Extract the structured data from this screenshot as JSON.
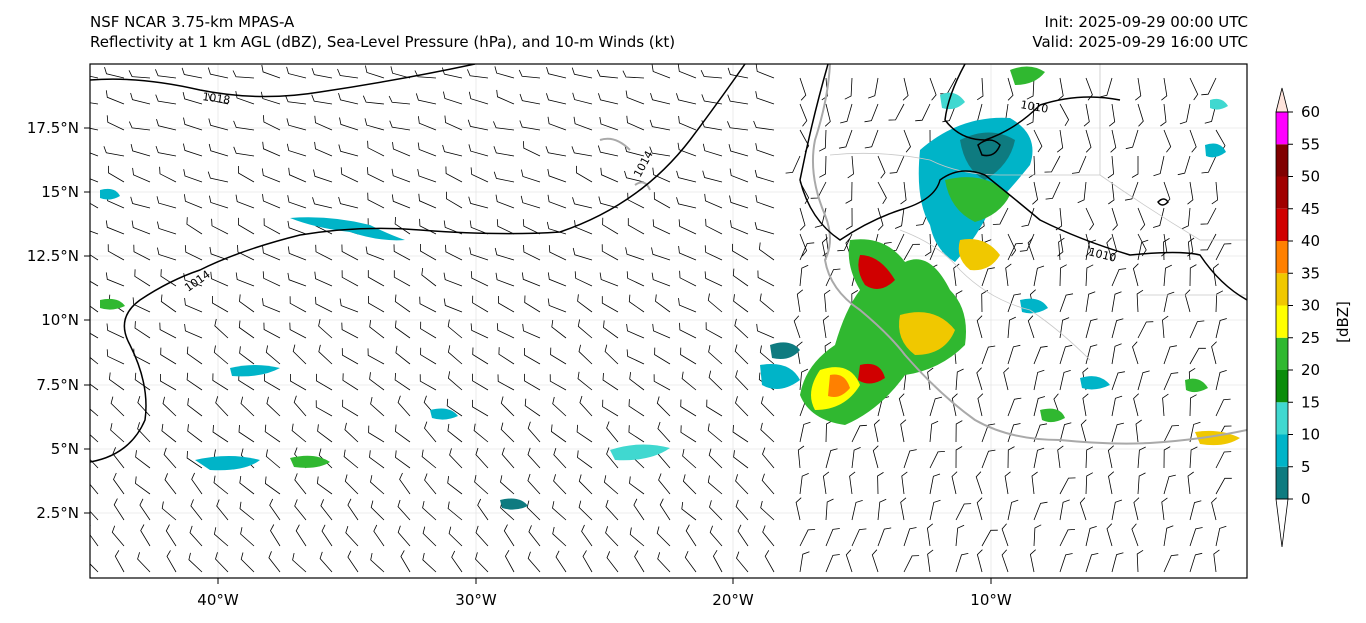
{
  "header": {
    "title_line1": "NSF NCAR 3.75-km MPAS-A",
    "title_line2": "Reflectivity at 1 km AGL (dBZ), Sea-Level Pressure (hPa), and 10-m Winds (kt)",
    "init": "Init: 2025-09-29 00:00 UTC",
    "valid": "Valid: 2025-09-29 16:00 UTC"
  },
  "axes": {
    "lat_ticks": [
      "17.5°N",
      "15°N",
      "12.5°N",
      "10°N",
      "7.5°N",
      "5°N",
      "2.5°N"
    ],
    "lon_ticks": [
      "40°W",
      "30°W",
      "20°W",
      "10°W"
    ]
  },
  "isobars": [
    "1018",
    "1014",
    "1014",
    "1010",
    "1010"
  ],
  "colorbar": {
    "label": "[dBZ]",
    "ticks": [
      "0",
      "5",
      "10",
      "15",
      "20",
      "25",
      "30",
      "35",
      "40",
      "45",
      "50",
      "55",
      "60"
    ],
    "colors": [
      "#ffffff",
      "#0e7b80",
      "#00b4c8",
      "#40d8d0",
      "#0a8c0a",
      "#30b830",
      "#ffff00",
      "#f0c800",
      "#ff8000",
      "#d00000",
      "#a00000",
      "#800000",
      "#ff00ff",
      "#ffe4dc"
    ]
  },
  "colors": {
    "coast": "#a9a9a9",
    "isobar": "#000000",
    "barb": "#000000"
  }
}
